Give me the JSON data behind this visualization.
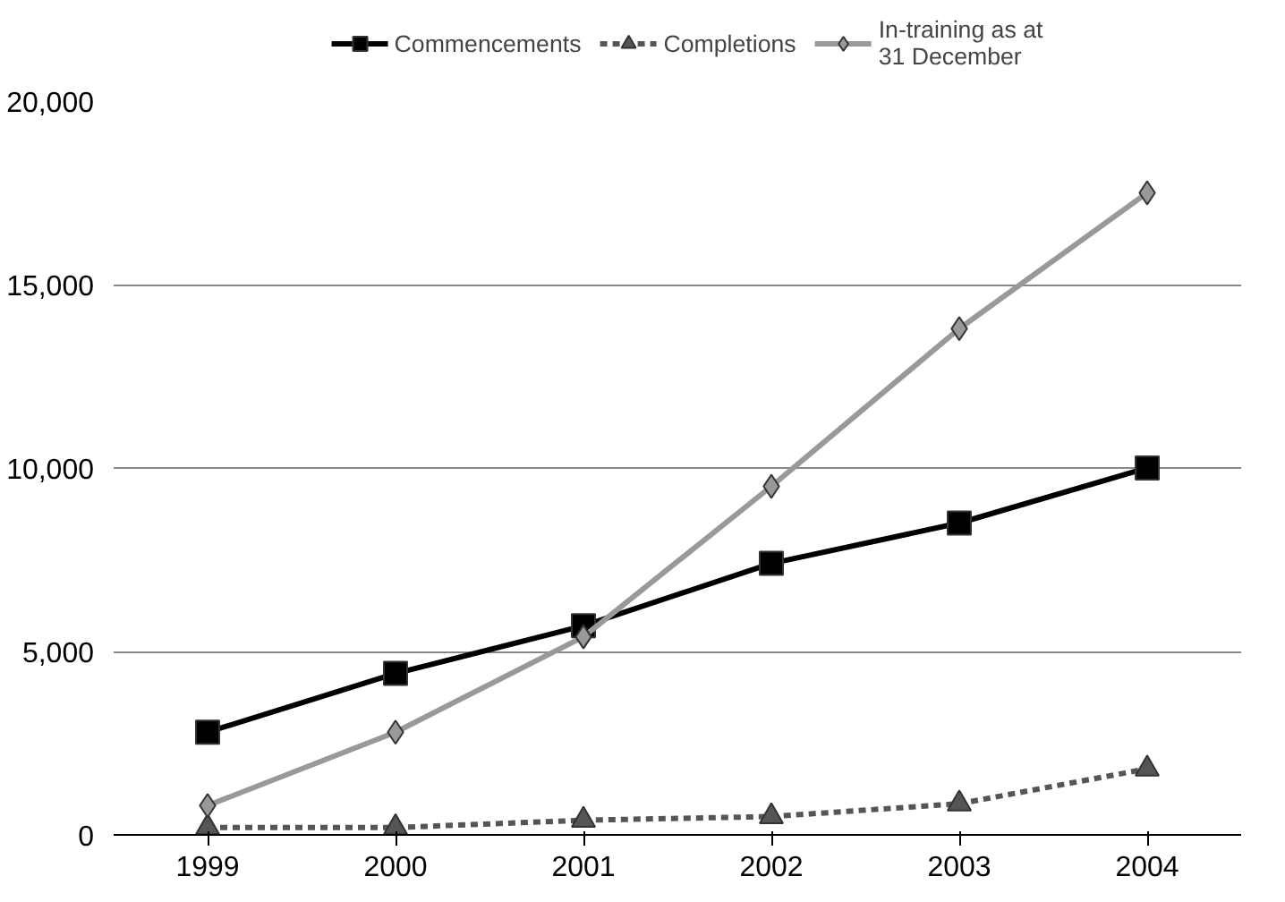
{
  "chart_data": {
    "type": "line",
    "categories": [
      "1999",
      "2000",
      "2001",
      "2002",
      "2003",
      "2004"
    ],
    "series": [
      {
        "name": "Commencements",
        "color": "#000000",
        "marker": "square",
        "line_style": "solid",
        "values": [
          2800,
          4400,
          5700,
          7400,
          8500,
          10000
        ]
      },
      {
        "name": "Completions",
        "color": "#555555",
        "marker": "triangle",
        "line_style": "dashed",
        "values": [
          200,
          200,
          400,
          500,
          850,
          1800
        ]
      },
      {
        "name": "In-training as at\n31 December",
        "color": "#999999",
        "marker": "diamond",
        "line_style": "solid",
        "values": [
          800,
          2800,
          5400,
          9500,
          13800,
          17500
        ]
      }
    ],
    "ylim": [
      0,
      20000
    ],
    "yticks": [
      {
        "value": 0,
        "label": "0"
      },
      {
        "value": 5000,
        "label": "5,000"
      },
      {
        "value": 10000,
        "label": "10,000"
      },
      {
        "value": 15000,
        "label": "15,000"
      },
      {
        "value": 20000,
        "label": "20,000"
      }
    ],
    "grid": "y",
    "legend": "top"
  }
}
